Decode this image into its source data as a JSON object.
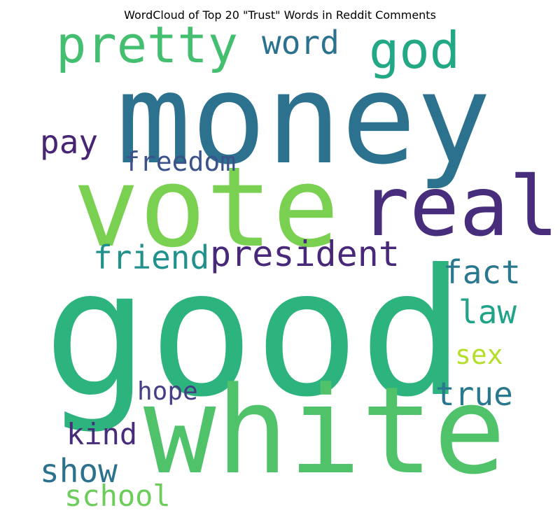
{
  "figure": {
    "title": "WordCloud of Top 20 \"Trust\" Words in Reddit Comments"
  },
  "words": [
    {
      "text": "good",
      "color": "#2db37d"
    },
    {
      "text": "money",
      "color": "#2c728e"
    },
    {
      "text": "white",
      "color": "#4fc26a"
    },
    {
      "text": "vote",
      "color": "#7ad151"
    },
    {
      "text": "real",
      "color": "#472d7b"
    },
    {
      "text": "pretty",
      "color": "#44bf70"
    },
    {
      "text": "god",
      "color": "#22a884"
    },
    {
      "text": "president",
      "color": "#482878"
    },
    {
      "text": "word",
      "color": "#2c728e"
    },
    {
      "text": "friend",
      "color": "#21918c"
    },
    {
      "text": "true",
      "color": "#2a788e"
    },
    {
      "text": "fact",
      "color": "#2a788e"
    },
    {
      "text": "law",
      "color": "#20a386"
    },
    {
      "text": "show",
      "color": "#2c728e"
    },
    {
      "text": "freedom",
      "color": "#3b528b"
    },
    {
      "text": "pay",
      "color": "#482475"
    },
    {
      "text": "school",
      "color": "#6ccd5a"
    },
    {
      "text": "kind",
      "color": "#472c7a"
    },
    {
      "text": "hope",
      "color": "#433e85"
    },
    {
      "text": "sex",
      "color": "#b5de2b"
    }
  ]
}
